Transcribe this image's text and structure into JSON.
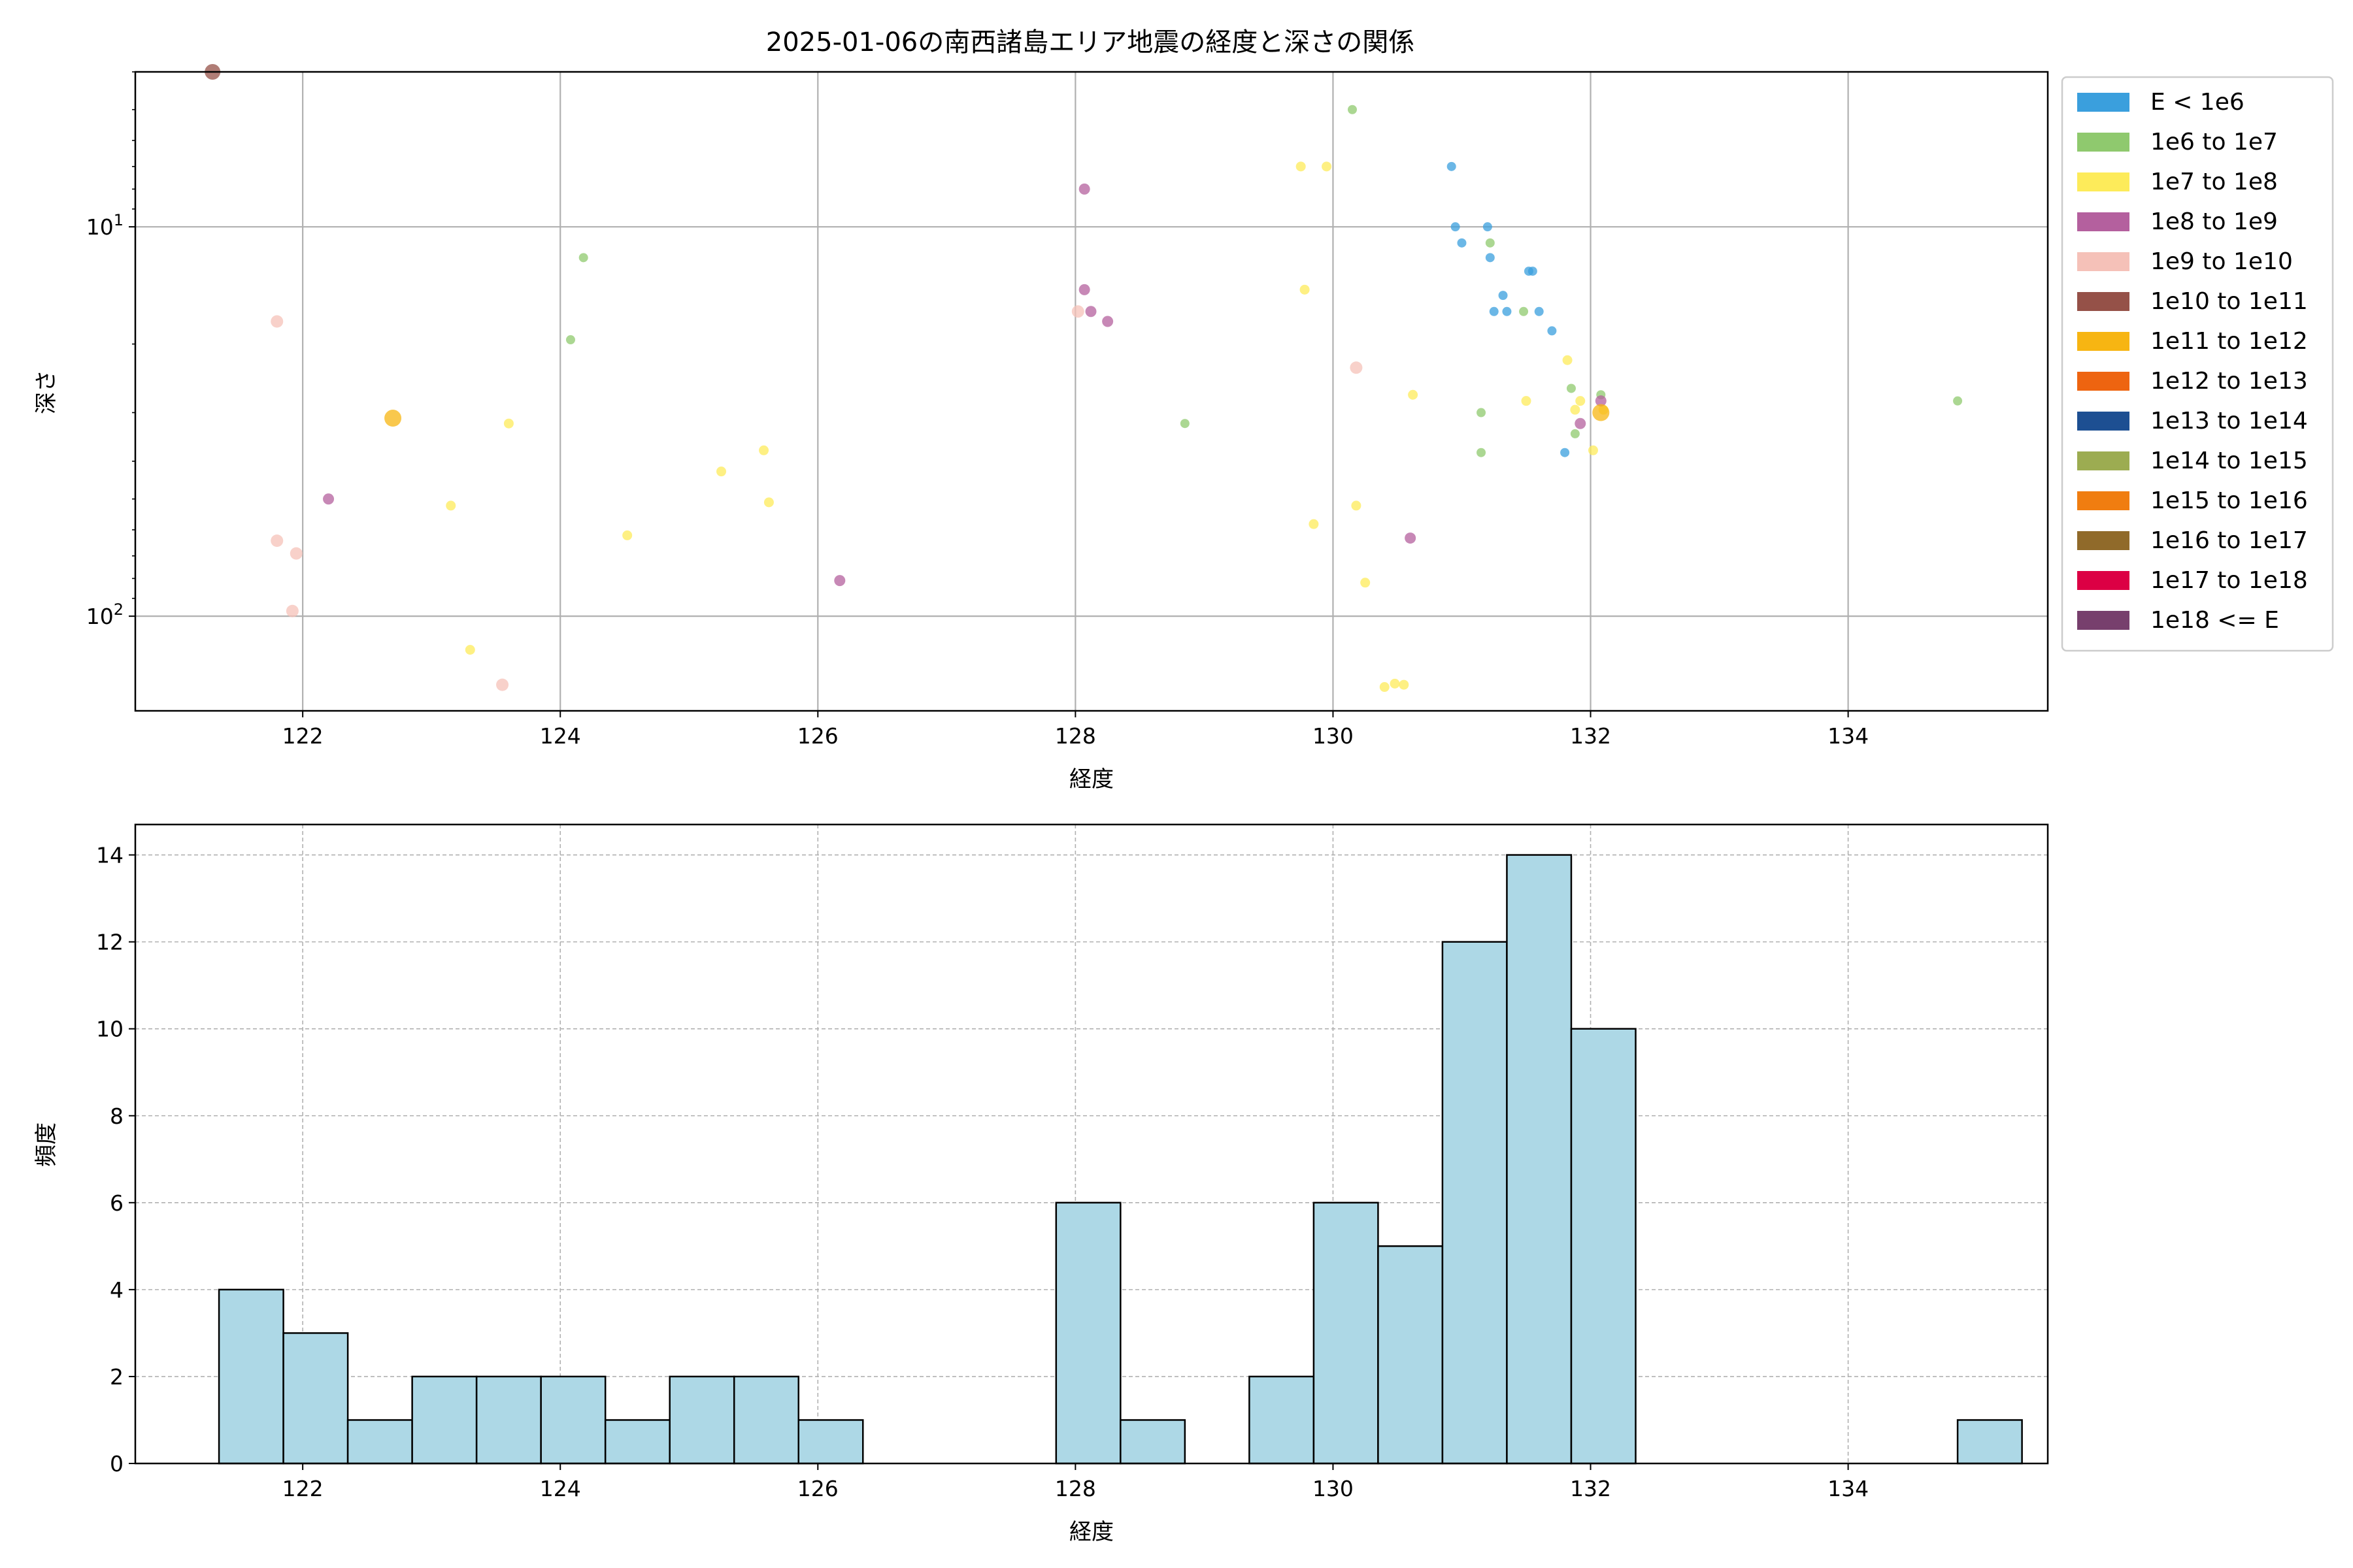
{
  "chart_data": [
    {
      "type": "scatter",
      "title": "2025-01-06の南西諸島エリア地震の経度と深さの関係",
      "xlabel": "経度",
      "ylabel": "深さ",
      "xlim": [
        120.7,
        135.55
      ],
      "ylim": [
        4.0,
        175.0
      ],
      "yscale": "log",
      "yaxis_inverted": true,
      "xticks": [
        122,
        124,
        126,
        128,
        130,
        132,
        134
      ],
      "yticks": [
        {
          "value": 10,
          "label": "10^1"
        },
        {
          "value": 100,
          "label": "10^2"
        }
      ],
      "grid": true,
      "legend_position": "outside-right",
      "legend": [
        {
          "label": "E < 1e6",
          "color": "#3a9fdd"
        },
        {
          "label": "1e6 to 1e7",
          "color": "#8fc96e"
        },
        {
          "label": "1e7 to 1e8",
          "color": "#fdeb5a"
        },
        {
          "label": "1e8 to 1e9",
          "color": "#b4609e"
        },
        {
          "label": "1e9 to 1e10",
          "color": "#f5c1b8"
        },
        {
          "label": "1e10 to 1e11",
          "color": "#955148"
        },
        {
          "label": "1e11 to 1e12",
          "color": "#f7b512"
        },
        {
          "label": "1e12 to 1e13",
          "color": "#ee6410"
        },
        {
          "label": "1e13 to 1e14",
          "color": "#1d4f92"
        },
        {
          "label": "1e14 to 1e15",
          "color": "#9cac51"
        },
        {
          "label": "1e15 to 1e16",
          "color": "#f07d10"
        },
        {
          "label": "1e16 to 1e17",
          "color": "#906a2a"
        },
        {
          "label": "1e17 to 1e18",
          "color": "#dc0044"
        },
        {
          "label": "1e18 <= E",
          "color": "#773f6d"
        }
      ],
      "series": [
        {
          "energy_class": 0,
          "points": [
            [
              130.92,
              7
            ],
            [
              130.95,
              10
            ],
            [
              131.0,
              11
            ],
            [
              131.2,
              10
            ],
            [
              131.22,
              12
            ],
            [
              131.25,
              16.5
            ],
            [
              131.32,
              15
            ],
            [
              131.35,
              16.5
            ],
            [
              131.52,
              13
            ],
            [
              131.55,
              13
            ],
            [
              131.6,
              16.5
            ],
            [
              131.7,
              18.5
            ],
            [
              131.8,
              38
            ]
          ]
        },
        {
          "energy_class": 1,
          "points": [
            [
              130.15,
              5
            ],
            [
              124.18,
              12
            ],
            [
              131.22,
              11
            ],
            [
              124.08,
              19.5
            ],
            [
              131.48,
              16.5
            ],
            [
              131.85,
              26
            ],
            [
              131.88,
              34
            ],
            [
              132.08,
              27
            ],
            [
              131.15,
              30
            ],
            [
              131.15,
              38
            ],
            [
              128.85,
              32
            ],
            [
              134.85,
              28
            ]
          ]
        },
        {
          "energy_class": 2,
          "points": [
            [
              129.75,
              7
            ],
            [
              129.95,
              7
            ],
            [
              129.78,
              14.5
            ],
            [
              131.82,
              22
            ],
            [
              131.5,
              28
            ],
            [
              131.88,
              29.5
            ],
            [
              131.92,
              28
            ],
            [
              130.62,
              27
            ],
            [
              132.02,
              37.5
            ],
            [
              132.1,
              29.5
            ],
            [
              123.6,
              32
            ],
            [
              125.58,
              37.5
            ],
            [
              125.25,
              42.5
            ],
            [
              125.62,
              51
            ],
            [
              123.15,
              52
            ],
            [
              124.52,
              62
            ],
            [
              129.85,
              58
            ],
            [
              130.18,
              52
            ],
            [
              130.25,
              82
            ],
            [
              123.3,
              122
            ],
            [
              130.4,
              152
            ],
            [
              130.48,
              149
            ],
            [
              130.55,
              150
            ]
          ]
        },
        {
          "energy_class": 3,
          "points": [
            [
              128.07,
              8
            ],
            [
              128.07,
              14.5
            ],
            [
              128.12,
              16.5
            ],
            [
              128.25,
              17.5
            ],
            [
              131.92,
              32
            ],
            [
              132.08,
              28
            ],
            [
              122.2,
              50
            ],
            [
              130.6,
              63
            ],
            [
              126.17,
              81
            ]
          ]
        },
        {
          "energy_class": 4,
          "points": [
            [
              121.8,
              17.5
            ],
            [
              128.02,
              16.5
            ],
            [
              130.18,
              23
            ],
            [
              121.8,
              64
            ],
            [
              121.95,
              69
            ],
            [
              121.92,
              97
            ],
            [
              123.55,
              150
            ]
          ]
        },
        {
          "energy_class": 5,
          "points": [
            [
              121.3,
              4
            ]
          ]
        },
        {
          "energy_class": 6,
          "points": [
            [
              122.7,
              31
            ],
            [
              132.08,
              30
            ]
          ]
        }
      ]
    },
    {
      "type": "bar",
      "chart_kind": "histogram",
      "xlabel": "経度",
      "ylabel": "頻度",
      "xlim": [
        120.7,
        135.55
      ],
      "ylim": [
        0,
        14.7
      ],
      "xticks": [
        122,
        124,
        126,
        128,
        130,
        132,
        134
      ],
      "yticks": [
        0,
        2,
        4,
        6,
        8,
        10,
        12,
        14
      ],
      "grid": true,
      "bar_color": "#add8e6",
      "bin_start": 121.35,
      "bin_width": 0.5,
      "values": [
        4,
        3,
        1,
        2,
        2,
        2,
        1,
        2,
        2,
        1,
        0,
        0,
        0,
        6,
        1,
        0,
        2,
        6,
        5,
        12,
        14,
        10,
        0,
        0,
        0,
        0,
        0,
        1
      ]
    }
  ]
}
